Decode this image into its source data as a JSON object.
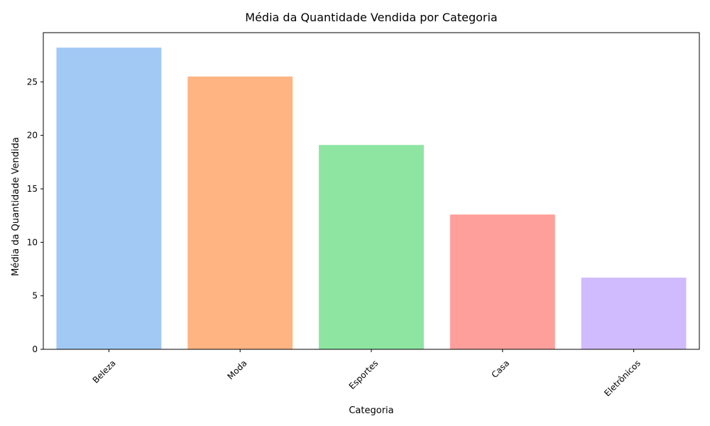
{
  "chart_data": {
    "type": "bar",
    "title": "Média da Quantidade Vendida por Categoria",
    "xlabel": "Categoria",
    "ylabel": "Média da Quantidade Vendida",
    "categories": [
      "Beleza",
      "Moda",
      "Esportes",
      "Casa",
      "Eletrônicos"
    ],
    "values": [
      28.2,
      25.5,
      19.1,
      12.6,
      6.7
    ],
    "colors": [
      "#a1c9f4",
      "#ffb482",
      "#8de5a1",
      "#ff9f9b",
      "#d0bbff"
    ],
    "ylim": [
      0,
      29.6
    ],
    "yticks": [
      0,
      5,
      10,
      15,
      20,
      25
    ],
    "grid": false,
    "xtick_rotation": 45
  }
}
